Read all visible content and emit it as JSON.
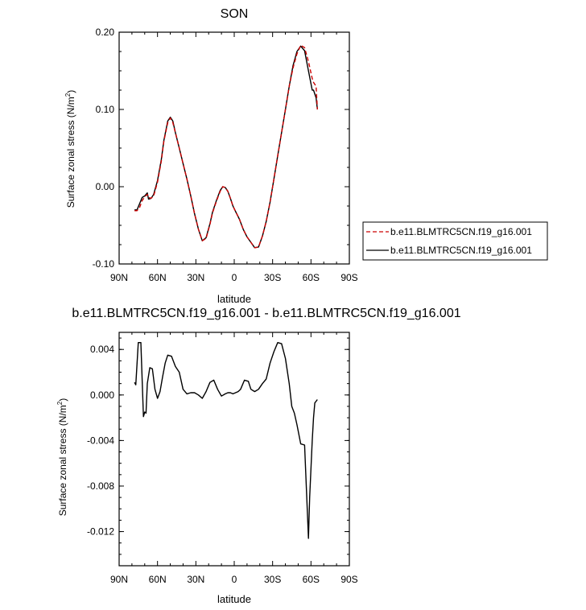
{
  "chart_data": [
    {
      "type": "line",
      "title": "SON",
      "xlabel": "latitude",
      "ylabel": "Surface zonal stress (N/m",
      "ylabel_sup": "2",
      "ylabel_close": ")",
      "xlim": [
        90,
        -90
      ],
      "ylim": [
        -0.1,
        0.2
      ],
      "xticks": [
        {
          "v": 90,
          "label": "90N"
        },
        {
          "v": 60,
          "label": "60N"
        },
        {
          "v": 30,
          "label": "30N"
        },
        {
          "v": 0,
          "label": "0"
        },
        {
          "v": -30,
          "label": "30S"
        },
        {
          "v": -60,
          "label": "60S"
        },
        {
          "v": -90,
          "label": "90S"
        }
      ],
      "yticks": [
        {
          "v": 0.2,
          "label": "0.20"
        },
        {
          "v": 0.1,
          "label": "0.10"
        },
        {
          "v": 0.0,
          "label": "0.00"
        },
        {
          "v": -0.1,
          "label": "-0.10"
        }
      ],
      "legend": {
        "placement": "right",
        "entries": [
          {
            "label": "b.e11.BLMTRC5CN.f19_g16.001",
            "color": "#cc0000",
            "dash": true
          },
          {
            "label": "b.e11.BLMTRC5CN.f19_g16.001",
            "color": "#000000",
            "dash": false
          }
        ]
      },
      "series": [
        {
          "color": "#000000",
          "dash": false,
          "x": [
            78,
            76,
            74,
            72,
            70,
            68,
            67,
            65,
            63,
            60,
            57,
            55,
            52,
            50,
            48,
            46,
            43,
            40,
            37,
            34,
            31,
            28,
            25,
            22,
            19,
            17,
            14,
            11,
            9,
            7,
            5,
            3,
            1,
            -1,
            -4,
            -7,
            -10,
            -13,
            -16,
            -19,
            -22,
            -25,
            -28,
            -31,
            -34,
            -37,
            -40,
            -43,
            -46,
            -49,
            -52,
            -55,
            -58,
            -61,
            -62,
            -64,
            -65
          ],
          "y": [
            -0.03,
            -0.03,
            -0.022,
            -0.014,
            -0.012,
            -0.008,
            -0.016,
            -0.015,
            -0.01,
            0.008,
            0.035,
            0.06,
            0.085,
            0.09,
            0.085,
            0.07,
            0.05,
            0.03,
            0.01,
            -0.012,
            -0.035,
            -0.055,
            -0.07,
            -0.066,
            -0.048,
            -0.033,
            -0.018,
            -0.005,
            0.0,
            -0.001,
            -0.006,
            -0.015,
            -0.025,
            -0.032,
            -0.042,
            -0.055,
            -0.065,
            -0.072,
            -0.079,
            -0.078,
            -0.064,
            -0.045,
            -0.02,
            0.01,
            0.04,
            0.07,
            0.1,
            0.13,
            0.157,
            0.175,
            0.182,
            0.176,
            0.15,
            0.125,
            0.125,
            0.115,
            0.1
          ]
        },
        {
          "color": "#cc0000",
          "dash": true,
          "x": [
            78,
            76,
            74,
            72,
            70,
            68,
            67,
            65,
            63,
            60,
            57,
            55,
            52,
            50,
            48,
            46,
            43,
            40,
            37,
            34,
            31,
            28,
            25,
            22,
            19,
            17,
            14,
            11,
            9,
            7,
            5,
            3,
            1,
            -1,
            -4,
            -7,
            -10,
            -13,
            -16,
            -19,
            -22,
            -25,
            -28,
            -31,
            -34,
            -37,
            -40,
            -43,
            -46,
            -49,
            -52,
            -55,
            -58,
            -61,
            -62,
            -64,
            -65
          ],
          "y": [
            -0.031,
            -0.031,
            -0.027,
            -0.018,
            -0.013,
            -0.01,
            -0.014,
            -0.015,
            -0.012,
            0.006,
            0.033,
            0.059,
            0.083,
            0.089,
            0.083,
            0.07,
            0.05,
            0.03,
            0.01,
            -0.012,
            -0.035,
            -0.055,
            -0.07,
            -0.067,
            -0.049,
            -0.034,
            -0.019,
            -0.006,
            0.0,
            -0.001,
            -0.006,
            -0.015,
            -0.025,
            -0.032,
            -0.042,
            -0.055,
            -0.065,
            -0.072,
            -0.079,
            -0.078,
            -0.064,
            -0.045,
            -0.02,
            0.01,
            0.04,
            0.07,
            0.1,
            0.13,
            0.154,
            0.172,
            0.183,
            0.18,
            0.162,
            0.14,
            0.135,
            0.13,
            0.1
          ]
        }
      ]
    },
    {
      "type": "line",
      "title": "b.e11.BLMTRC5CN.f19_g16.001 - b.e11.BLMTRC5CN.f19_g16.001",
      "xlabel": "latitude",
      "ylabel": "Surface zonal stress (N/m",
      "ylabel_sup": "2",
      "ylabel_close": ")",
      "xlim": [
        90,
        -90
      ],
      "ylim": [
        -0.015,
        0.0055
      ],
      "xticks": [
        {
          "v": 90,
          "label": "90N"
        },
        {
          "v": 60,
          "label": "60N"
        },
        {
          "v": 30,
          "label": "30N"
        },
        {
          "v": 0,
          "label": "0"
        },
        {
          "v": -30,
          "label": "30S"
        },
        {
          "v": -60,
          "label": "60S"
        },
        {
          "v": -90,
          "label": "90S"
        }
      ],
      "yticks": [
        {
          "v": 0.004,
          "label": "0.004"
        },
        {
          "v": 0.0,
          "label": "0.000"
        },
        {
          "v": -0.004,
          "label": "-0.004"
        },
        {
          "v": -0.008,
          "label": "-0.008"
        },
        {
          "v": -0.012,
          "label": "-0.012"
        }
      ],
      "series": [
        {
          "color": "#000000",
          "dash": false,
          "x": [
            78,
            77,
            75,
            73,
            71,
            70,
            69,
            68,
            66,
            64,
            62,
            60,
            58,
            56,
            54,
            52,
            49,
            46,
            43,
            40,
            37,
            34,
            31,
            28,
            25,
            22,
            19,
            16,
            13,
            10,
            7,
            5,
            3,
            1,
            -1,
            -3,
            -5,
            -8,
            -11,
            -13,
            -16,
            -19,
            -22,
            -25,
            -28,
            -31,
            -34,
            -37,
            -40,
            -43,
            -45,
            -47,
            -49,
            -52,
            -55,
            -58,
            -59,
            -61,
            -62,
            -63,
            -65
          ],
          "y": [
            0.0011,
            0.0009,
            0.0046,
            0.0046,
            -0.0019,
            -0.0015,
            -0.0016,
            0.001,
            0.0024,
            0.0023,
            0.0005,
            -0.0003,
            0.0003,
            0.0016,
            0.0028,
            0.0035,
            0.0034,
            0.0025,
            0.002,
            0.0005,
            0.0001,
            0.0002,
            0.0002,
            0.0,
            -0.0003,
            0.0003,
            0.0011,
            0.0013,
            0.0005,
            -0.0001,
            0.0001,
            0.0002,
            0.0002,
            0.0001,
            0.0002,
            0.0003,
            0.0005,
            0.0013,
            0.0012,
            0.0005,
            0.0003,
            0.0005,
            0.001,
            0.0014,
            0.0028,
            0.0038,
            0.0046,
            0.0045,
            0.0032,
            0.001,
            -0.001,
            -0.0016,
            -0.0026,
            -0.0043,
            -0.0044,
            -0.0126,
            -0.009,
            -0.004,
            -0.002,
            -0.0007,
            -0.0004
          ]
        }
      ]
    }
  ]
}
